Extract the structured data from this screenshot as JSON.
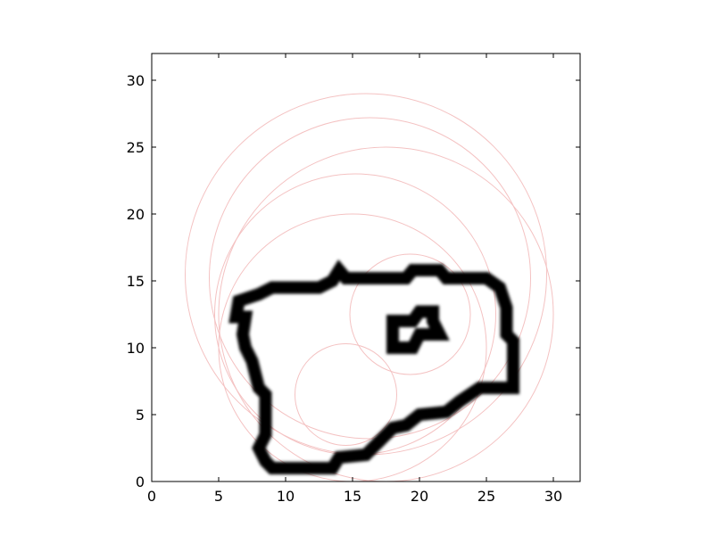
{
  "chart_data": {
    "type": "image-with-circles",
    "title": "",
    "xlabel": "",
    "ylabel": "",
    "xlim": [
      0,
      32
    ],
    "ylim": [
      0,
      32
    ],
    "x_ticks": [
      0,
      5,
      10,
      15,
      20,
      25,
      30
    ],
    "y_ticks": [
      0,
      5,
      10,
      15,
      20,
      25,
      30
    ],
    "x_tick_labels": [
      "0",
      "5",
      "10",
      "15",
      "20",
      "25",
      "30"
    ],
    "y_tick_labels": [
      "0",
      "5",
      "10",
      "15",
      "20",
      "25",
      "30"
    ],
    "grid": false,
    "legend": "none",
    "colors": {
      "outline": "#000000",
      "circle": "#f4c2c2",
      "axes": "#000000"
    },
    "outer_outline": [
      [
        6.3,
        12.3
      ],
      [
        6.5,
        13.5
      ],
      [
        8.0,
        14.0
      ],
      [
        9.0,
        14.5
      ],
      [
        12.5,
        14.5
      ],
      [
        13.5,
        15.0
      ],
      [
        14.0,
        15.8
      ],
      [
        14.5,
        15.2
      ],
      [
        19.0,
        15.2
      ],
      [
        19.5,
        15.8
      ],
      [
        21.5,
        15.8
      ],
      [
        22.0,
        15.2
      ],
      [
        25.0,
        15.2
      ],
      [
        26.0,
        14.5
      ],
      [
        26.5,
        13.0
      ],
      [
        26.5,
        11.0
      ],
      [
        27.0,
        10.5
      ],
      [
        27.0,
        7.0
      ],
      [
        24.5,
        7.0
      ],
      [
        23.0,
        6.0
      ],
      [
        22.0,
        5.2
      ],
      [
        20.0,
        5.0
      ],
      [
        19.0,
        4.2
      ],
      [
        18.0,
        4.0
      ],
      [
        17.0,
        3.0
      ],
      [
        16.0,
        2.0
      ],
      [
        14.0,
        1.8
      ],
      [
        13.5,
        1.0
      ],
      [
        9.0,
        1.0
      ],
      [
        8.5,
        1.5
      ],
      [
        8.0,
        2.5
      ],
      [
        8.5,
        3.5
      ],
      [
        8.5,
        6.5
      ],
      [
        8.0,
        7.0
      ],
      [
        7.5,
        9.0
      ],
      [
        7.0,
        10.0
      ],
      [
        6.8,
        11.0
      ],
      [
        7.0,
        12.3
      ]
    ],
    "inner_outline": [
      [
        18.0,
        12.0
      ],
      [
        18.0,
        10.0
      ],
      [
        19.5,
        10.0
      ],
      [
        20.0,
        11.0
      ],
      [
        21.5,
        11.0
      ],
      [
        21.0,
        12.0
      ],
      [
        21.0,
        12.7
      ],
      [
        20.0,
        12.7
      ],
      [
        19.5,
        12.0
      ]
    ],
    "circles": [
      {
        "cx": 16.0,
        "cy": 15.5,
        "r": 13.5
      },
      {
        "cx": 16.3,
        "cy": 15.2,
        "r": 12.0
      },
      {
        "cx": 17.5,
        "cy": 12.5,
        "r": 12.5
      },
      {
        "cx": 15.2,
        "cy": 12.5,
        "r": 10.5
      },
      {
        "cx": 15.0,
        "cy": 10.0,
        "r": 10.0
      },
      {
        "cx": 14.5,
        "cy": 6.5,
        "r": 3.8
      },
      {
        "cx": 19.3,
        "cy": 12.5,
        "r": 4.5
      }
    ]
  }
}
